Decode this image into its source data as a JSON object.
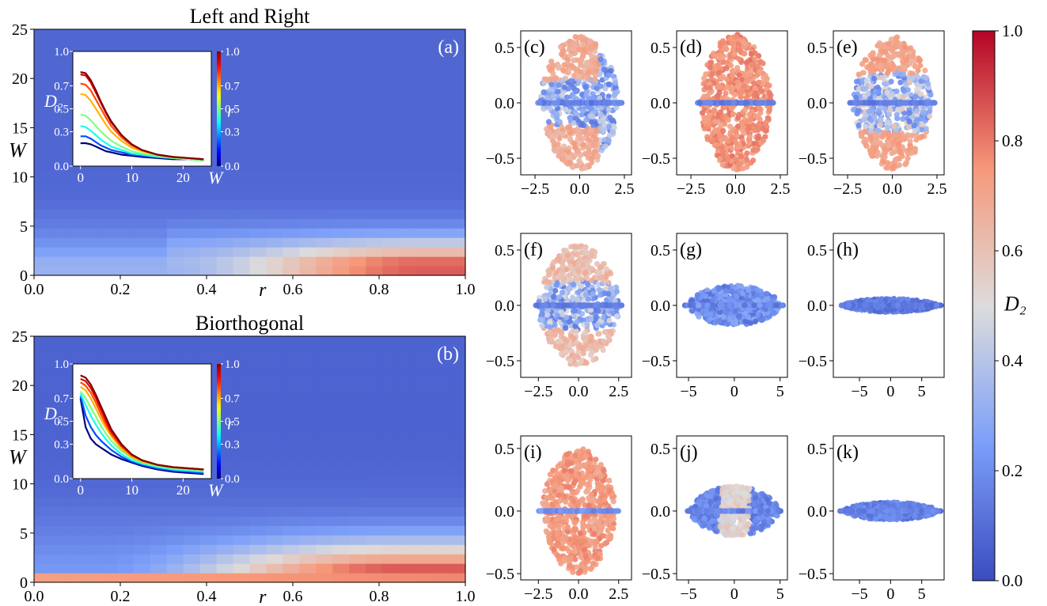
{
  "colorbar": {
    "label": "D₂",
    "ticks": [
      "0.0",
      "0.2",
      "0.4",
      "0.6",
      "0.8",
      "1.0"
    ],
    "tick_values": [
      0.0,
      0.2,
      0.4,
      0.6,
      0.8,
      1.0
    ],
    "range": [
      0,
      1
    ],
    "colormap": "coolwarm"
  },
  "chart_data": [
    {
      "id": "a",
      "type": "heatmap",
      "panel_label": "(a)",
      "title": "Left and Right",
      "xlabel": "r",
      "ylabel": "W",
      "xlim": [
        0,
        1
      ],
      "ylim": [
        0,
        25
      ],
      "xticks": [
        "0.0",
        "0.2",
        "0.4",
        "0.6",
        "0.8",
        "1.0"
      ],
      "yticks": [
        "0",
        "5",
        "10",
        "15",
        "20",
        "25"
      ],
      "value_description": "D₂ over (r, W); high (~0.75–0.85) for r>0.6 and W<3, decaying to ~0.1 for W>10",
      "inset": {
        "type": "line",
        "xlabel": "W",
        "ylabel": "D₂",
        "xticks": [
          "0",
          "10",
          "20"
        ],
        "yticks": [
          "0.0",
          "0.3",
          "0.5",
          "0.7",
          "1.0"
        ],
        "colorbar_label": "r",
        "colorbar_ticks": [
          "0.0",
          "0.3",
          "0.5",
          "0.7",
          "1.0"
        ],
        "x": [
          0,
          1,
          2,
          3,
          4,
          5,
          6,
          8,
          10,
          12,
          15,
          18,
          21,
          24
        ],
        "series": [
          {
            "r": 0.0,
            "values": [
              0.2,
              0.2,
              0.19,
              0.17,
              0.15,
              0.13,
              0.12,
              0.1,
              0.09,
              0.08,
              0.07,
              0.06,
              0.06,
              0.05
            ]
          },
          {
            "r": 0.2,
            "values": [
              0.26,
              0.26,
              0.24,
              0.21,
              0.18,
              0.16,
              0.14,
              0.12,
              0.1,
              0.09,
              0.08,
              0.07,
              0.06,
              0.05
            ]
          },
          {
            "r": 0.4,
            "values": [
              0.35,
              0.34,
              0.31,
              0.27,
              0.23,
              0.2,
              0.17,
              0.14,
              0.11,
              0.1,
              0.08,
              0.07,
              0.06,
              0.05
            ]
          },
          {
            "r": 0.5,
            "values": [
              0.45,
              0.44,
              0.4,
              0.35,
              0.3,
              0.26,
              0.22,
              0.17,
              0.13,
              0.11,
              0.09,
              0.07,
              0.06,
              0.05
            ]
          },
          {
            "r": 0.7,
            "values": [
              0.63,
              0.62,
              0.57,
              0.5,
              0.43,
              0.36,
              0.3,
              0.22,
              0.16,
              0.13,
              0.1,
              0.08,
              0.07,
              0.06
            ]
          },
          {
            "r": 0.8,
            "values": [
              0.72,
              0.71,
              0.66,
              0.58,
              0.5,
              0.42,
              0.35,
              0.25,
              0.18,
              0.14,
              0.1,
              0.08,
              0.07,
              0.06
            ]
          },
          {
            "r": 0.9,
            "values": [
              0.8,
              0.79,
              0.73,
              0.64,
              0.55,
              0.46,
              0.38,
              0.27,
              0.19,
              0.14,
              0.1,
              0.08,
              0.07,
              0.06
            ]
          },
          {
            "r": 1.0,
            "values": [
              0.82,
              0.81,
              0.75,
              0.66,
              0.56,
              0.47,
              0.39,
              0.27,
              0.19,
              0.14,
              0.1,
              0.08,
              0.07,
              0.06
            ]
          }
        ]
      }
    },
    {
      "id": "b",
      "type": "heatmap",
      "panel_label": "(b)",
      "title": "Biorthogonal",
      "xlabel": "r",
      "ylabel": "W",
      "xlim": [
        0,
        1
      ],
      "ylim": [
        0,
        25
      ],
      "xticks": [
        "0.0",
        "0.2",
        "0.4",
        "0.6",
        "0.8",
        "1.0"
      ],
      "yticks": [
        "0",
        "5",
        "10",
        "15",
        "20",
        "25"
      ],
      "value_description": "D₂ over (r, W); high (~0.7–0.9) for r>0.4 and W<4, ~0.75 at W=0 for all r, decaying to ~0.1 for W>12",
      "inset": {
        "type": "line",
        "xlabel": "W",
        "ylabel": "D₂",
        "xticks": [
          "0",
          "10",
          "20"
        ],
        "yticks": [
          "0.0",
          "0.3",
          "0.5",
          "0.7",
          "1.0"
        ],
        "colorbar_label": "r",
        "colorbar_ticks": [
          "0.0",
          "0.3",
          "0.5",
          "0.7",
          "1.0"
        ],
        "x": [
          0,
          1,
          2,
          3,
          4,
          5,
          6,
          8,
          10,
          12,
          15,
          18,
          21,
          24
        ],
        "series": [
          {
            "r": 0.0,
            "values": [
              0.7,
              0.45,
              0.35,
              0.3,
              0.27,
              0.24,
              0.21,
              0.17,
              0.14,
              0.11,
              0.08,
              0.06,
              0.05,
              0.04
            ]
          },
          {
            "r": 0.2,
            "values": [
              0.72,
              0.55,
              0.45,
              0.38,
              0.33,
              0.29,
              0.25,
              0.19,
              0.15,
              0.12,
              0.09,
              0.07,
              0.06,
              0.05
            ]
          },
          {
            "r": 0.4,
            "values": [
              0.74,
              0.64,
              0.55,
              0.47,
              0.4,
              0.34,
              0.29,
              0.21,
              0.16,
              0.13,
              0.1,
              0.08,
              0.07,
              0.06
            ]
          },
          {
            "r": 0.5,
            "values": [
              0.76,
              0.7,
              0.62,
              0.54,
              0.46,
              0.39,
              0.33,
              0.24,
              0.18,
              0.14,
              0.11,
              0.09,
              0.08,
              0.07
            ]
          },
          {
            "r": 0.7,
            "values": [
              0.8,
              0.77,
              0.7,
              0.61,
              0.52,
              0.44,
              0.37,
              0.26,
              0.19,
              0.15,
              0.12,
              0.1,
              0.09,
              0.08
            ]
          },
          {
            "r": 0.8,
            "values": [
              0.84,
              0.81,
              0.75,
              0.66,
              0.56,
              0.47,
              0.39,
              0.28,
              0.2,
              0.16,
              0.12,
              0.1,
              0.09,
              0.08
            ]
          },
          {
            "r": 0.9,
            "values": [
              0.87,
              0.85,
              0.79,
              0.7,
              0.6,
              0.5,
              0.41,
              0.29,
              0.21,
              0.16,
              0.12,
              0.1,
              0.09,
              0.08
            ]
          },
          {
            "r": 1.0,
            "values": [
              0.9,
              0.88,
              0.82,
              0.73,
              0.63,
              0.53,
              0.43,
              0.3,
              0.21,
              0.16,
              0.12,
              0.1,
              0.09,
              0.08
            ]
          }
        ]
      }
    },
    {
      "id": "c",
      "type": "scatter",
      "panel_label": "(c)",
      "xlim": [
        -3.3,
        2.9
      ],
      "ylim": [
        -0.65,
        0.65
      ],
      "xticks": [
        "−2.5",
        "0.0",
        "2.5"
      ],
      "xtick_values": [
        -2.5,
        0,
        2.5
      ],
      "yticks": [
        "0.5",
        "0.0",
        "−0.5"
      ],
      "ytick_values": [
        0.5,
        0,
        -0.5
      ],
      "cloud": {
        "x_half_width": 2.2,
        "y_half_height": 0.6
      },
      "color_description": "mixed: salmon in upper/lower lobes, blue near center and right edge"
    },
    {
      "id": "d",
      "type": "scatter",
      "panel_label": "(d)",
      "xlim": [
        -3.3,
        2.9
      ],
      "ylim": [
        -0.65,
        0.65
      ],
      "xticks": [
        "−2.5",
        "0.0",
        "2.5"
      ],
      "xtick_values": [
        -2.5,
        0,
        2.5
      ],
      "yticks": [
        "0.5",
        "0.0",
        "−0.5"
      ],
      "ytick_values": [
        0.5,
        0,
        -0.5
      ],
      "cloud": {
        "x_half_width": 2.0,
        "y_half_height": 0.62
      },
      "color_description": "mostly salmon-red, blue points along real axis"
    },
    {
      "id": "e",
      "type": "scatter",
      "panel_label": "(e)",
      "xlim": [
        -3.3,
        2.9
      ],
      "ylim": [
        -0.65,
        0.65
      ],
      "xticks": [
        "−2.5",
        "0.0",
        "2.5"
      ],
      "xtick_values": [
        -2.5,
        0,
        2.5
      ],
      "yticks": [
        "0.5",
        "0.0",
        "−0.5"
      ],
      "ytick_values": [
        0.5,
        0,
        -0.5
      ],
      "cloud": {
        "x_half_width": 2.2,
        "y_half_height": 0.6
      },
      "color_description": "salmon outer lobes, blue vertical bands near center"
    },
    {
      "id": "f",
      "type": "scatter",
      "panel_label": "(f)",
      "xlim": [
        -3.6,
        3.3
      ],
      "ylim": [
        -0.65,
        0.65
      ],
      "xticks": [
        "−2.5",
        "0.0",
        "2.5"
      ],
      "xtick_values": [
        -2.5,
        0,
        2.5
      ],
      "yticks": [
        "0.5",
        "0.0",
        "−0.5"
      ],
      "ytick_values": [
        0.5,
        0,
        -0.5
      ],
      "cloud": {
        "x_half_width": 2.5,
        "y_half_height": 0.55
      },
      "color_description": "mixed salmon and blue"
    },
    {
      "id": "g",
      "type": "scatter",
      "panel_label": "(g)",
      "xlim": [
        -6.3,
        5.8
      ],
      "ylim": [
        -0.65,
        0.65
      ],
      "xticks": [
        "−5",
        "0",
        "5"
      ],
      "xtick_values": [
        -5,
        0,
        5
      ],
      "yticks": [
        "0.5",
        "0.0",
        "−0.5"
      ],
      "ytick_values": [
        0.5,
        0,
        -0.5
      ],
      "cloud": {
        "x_half_width": 5.0,
        "y_half_height": 0.18
      },
      "color_description": "mostly blue, flattened"
    },
    {
      "id": "h",
      "type": "scatter",
      "panel_label": "(h)",
      "xlim": [
        -9.2,
        8.6
      ],
      "ylim": [
        -0.65,
        0.65
      ],
      "xticks": [
        "−5",
        "0",
        "5"
      ],
      "xtick_values": [
        -5,
        0,
        5
      ],
      "yticks": [
        "0.5",
        "0.0",
        "−0.5"
      ],
      "ytick_values": [
        0.5,
        0,
        -0.5
      ],
      "cloud": {
        "x_half_width": 7.5,
        "y_half_height": 0.06
      },
      "color_description": "blue, nearly all on real axis"
    },
    {
      "id": "i",
      "type": "scatter",
      "panel_label": "(i)",
      "xlim": [
        -3.6,
        3.3
      ],
      "ylim": [
        -0.55,
        0.6
      ],
      "xticks": [
        "−2.5",
        "0.0",
        "2.5"
      ],
      "xtick_values": [
        -2.5,
        0,
        2.5
      ],
      "yticks": [
        "0.5",
        "0.0",
        "−0.5"
      ],
      "ytick_values": [
        0.5,
        0,
        -0.5
      ],
      "cloud": {
        "x_half_width": 2.3,
        "y_half_height": 0.5
      },
      "color_description": "mostly salmon-red, blue along real axis"
    },
    {
      "id": "j",
      "type": "scatter",
      "panel_label": "(j)",
      "xlim": [
        -6.3,
        5.8
      ],
      "ylim": [
        -0.55,
        0.6
      ],
      "xticks": [
        "−5",
        "0",
        "5"
      ],
      "xtick_values": [
        -5,
        0,
        5
      ],
      "yticks": [
        "0.5",
        "0.0",
        "−0.5"
      ],
      "ytick_values": [
        0.5,
        0,
        -0.5
      ],
      "cloud": {
        "x_half_width": 4.8,
        "y_half_height": 0.2
      },
      "color_description": "blue with light salmon near center"
    },
    {
      "id": "k",
      "type": "scatter",
      "panel_label": "(k)",
      "xlim": [
        -9.2,
        8.6
      ],
      "ylim": [
        -0.55,
        0.6
      ],
      "xticks": [
        "−5",
        "0",
        "5"
      ],
      "xtick_values": [
        -5,
        0,
        5
      ],
      "yticks": [
        "0.5",
        "0.0",
        "−0.5"
      ],
      "ytick_values": [
        0.5,
        0,
        -0.5
      ],
      "cloud": {
        "x_half_width": 7.5,
        "y_half_height": 0.07
      },
      "color_description": "blue, nearly all on real axis"
    }
  ]
}
